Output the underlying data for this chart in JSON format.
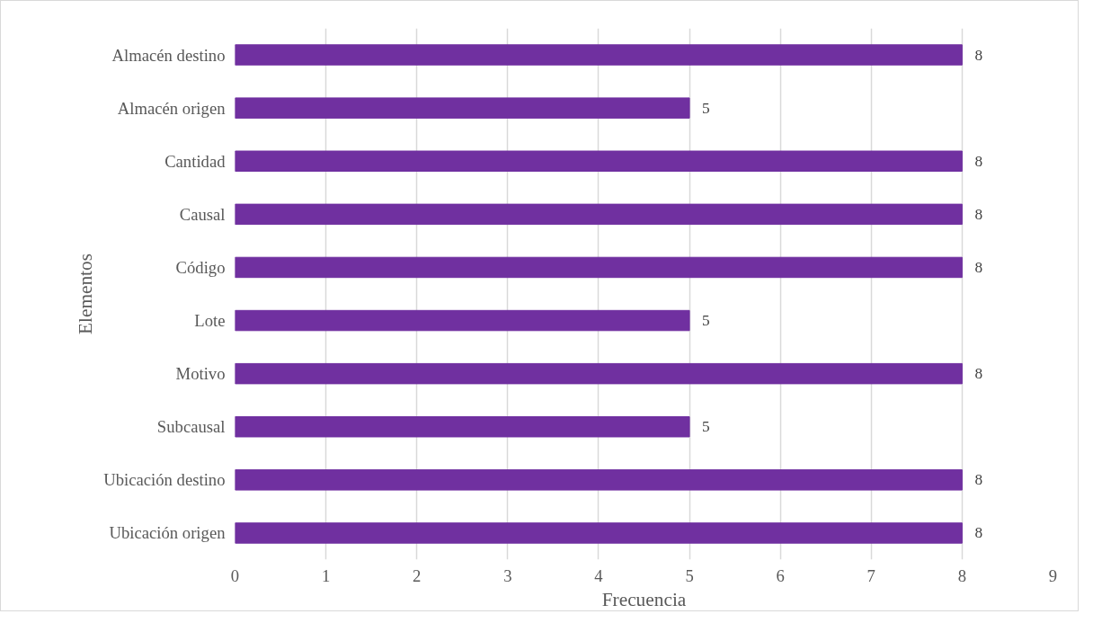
{
  "chart_data": {
    "type": "bar",
    "orientation": "horizontal",
    "xlabel": "Frecuencia",
    "ylabel": "Elementos",
    "categories": [
      "Almacén destino",
      "Almacén origen",
      "Cantidad",
      "Causal",
      "Código",
      "Lote",
      "Motivo",
      "Subcausal",
      "Ubicación destino",
      "Ubicación origen"
    ],
    "values": [
      8,
      5,
      8,
      8,
      8,
      5,
      8,
      5,
      8,
      8
    ],
    "color": "#7030a0",
    "xlim": [
      0,
      9
    ],
    "xticks": [
      0,
      1,
      2,
      3,
      4,
      5,
      6,
      7,
      8,
      9
    ],
    "grid": "x",
    "data_labels": true
  }
}
